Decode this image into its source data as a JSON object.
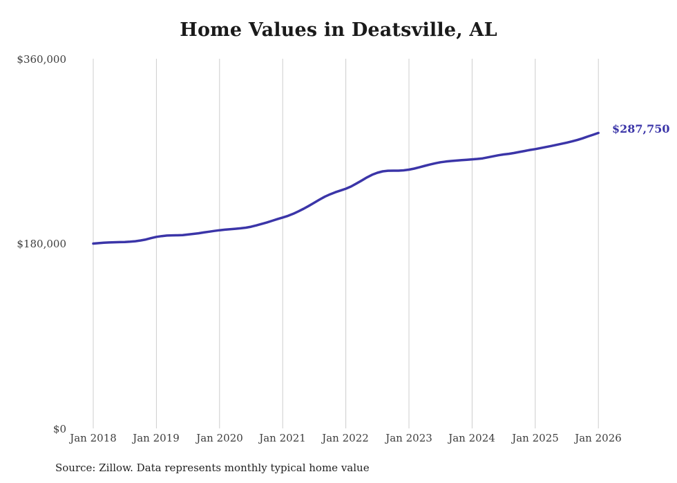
{
  "title": "Home Values in Deatsville, AL",
  "source_note": "Source: Zillow. Data represents monthly typical home value",
  "end_label": "$287,750",
  "colors": {
    "line": "#3b35a8",
    "grid": "#cccccc",
    "axis_text": "#3d3d3d",
    "title_text": "#1a1a1a"
  },
  "chart_data": {
    "type": "line",
    "title": "Home Values in Deatsville, AL",
    "xlabel": "",
    "ylabel": "",
    "ylim": [
      0,
      360000
    ],
    "grid": "vertical-only",
    "frequency": "monthly",
    "x_start": "Jan 2018",
    "x_end": "Jan 2026",
    "x_tick_labels": [
      "Jan 2018",
      "Jan 2019",
      "Jan 2020",
      "Jan 2021",
      "Jan 2022",
      "Jan 2023",
      "Jan 2024",
      "Jan 2025",
      "Jan 2026"
    ],
    "y_tick_labels": [
      "$0",
      "$180,000",
      "$360,000"
    ],
    "end_value": 287750,
    "series": [
      {
        "name": "Typical home value",
        "values": [
          180000,
          180400,
          180800,
          181100,
          181300,
          181400,
          181500,
          181800,
          182300,
          183000,
          184000,
          185300,
          186500,
          187300,
          187800,
          188000,
          188100,
          188300,
          188800,
          189400,
          190000,
          190800,
          191600,
          192300,
          193000,
          193500,
          194000,
          194400,
          194900,
          195500,
          196400,
          197700,
          199100,
          200600,
          202200,
          203800,
          205400,
          207000,
          209000,
          211400,
          214000,
          216800,
          219800,
          222800,
          225600,
          228000,
          230000,
          231700,
          233400,
          235600,
          238400,
          241400,
          244400,
          247000,
          249000,
          250300,
          250900,
          251000,
          251000,
          251300,
          252000,
          253000,
          254300,
          255700,
          257000,
          258200,
          259200,
          259900,
          260400,
          260800,
          261200,
          261600,
          262000,
          262400,
          263000,
          264000,
          265000,
          266000,
          266800,
          267400,
          268200,
          269200,
          270200,
          271200,
          272000,
          273000,
          274000,
          275000,
          276100,
          277200,
          278300,
          279500,
          280900,
          282500,
          284300,
          286000,
          287750
        ]
      }
    ]
  }
}
